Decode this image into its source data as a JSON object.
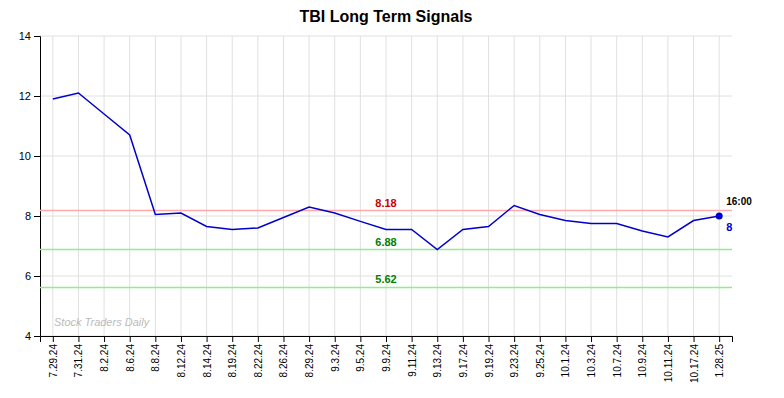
{
  "chart_data": {
    "type": "line",
    "title": "TBI Long Term Signals",
    "categories": [
      "7.29.24",
      "7.31.24",
      "8.2.24",
      "8.6.24",
      "8.8.24",
      "8.12.24",
      "8.14.24",
      "8.19.24",
      "8.22.24",
      "8.26.24",
      "8.29.24",
      "9.3.24",
      "9.5.24",
      "9.9.24",
      "9.11.24",
      "9.13.24",
      "9.17.24",
      "9.19.24",
      "9.23.24",
      "9.25.24",
      "10.1.24",
      "10.3.24",
      "10.7.24",
      "10.9.24",
      "10.11.24",
      "10.17.24",
      "1.28.25"
    ],
    "values": [
      11.9,
      12.1,
      11.4,
      10.7,
      8.05,
      8.1,
      7.65,
      7.55,
      7.6,
      7.95,
      8.3,
      8.1,
      7.82,
      7.55,
      7.55,
      6.88,
      7.55,
      7.65,
      8.35,
      8.05,
      7.85,
      7.75,
      7.75,
      7.5,
      7.3,
      7.85,
      8.0
    ],
    "value_labels": [
      null,
      null,
      null,
      null,
      null,
      null,
      null,
      null,
      null,
      null,
      null,
      null,
      null,
      null,
      null,
      null,
      null,
      null,
      null,
      null,
      null,
      null,
      null,
      null,
      null,
      null,
      "8"
    ],
    "color": "#0000cc",
    "reference_lines": [
      {
        "value": 8.18,
        "color": "#ffaaaa",
        "label": "8.18",
        "label_color": "#cc0000"
      },
      {
        "value": 6.88,
        "color": "#90ee90",
        "label": "6.88",
        "label_color": "#008000"
      },
      {
        "value": 5.62,
        "color": "#90ee90",
        "label": "5.62",
        "label_color": "#008000"
      }
    ],
    "annotations": [
      {
        "text": "16:00",
        "x": "1.28.25",
        "y": 8.0
      },
      {
        "text": "Stock Traders Daily"
      }
    ],
    "ylim": [
      4,
      14
    ],
    "yticks": [
      4,
      6,
      8,
      10,
      12,
      14
    ],
    "grid": true
  }
}
